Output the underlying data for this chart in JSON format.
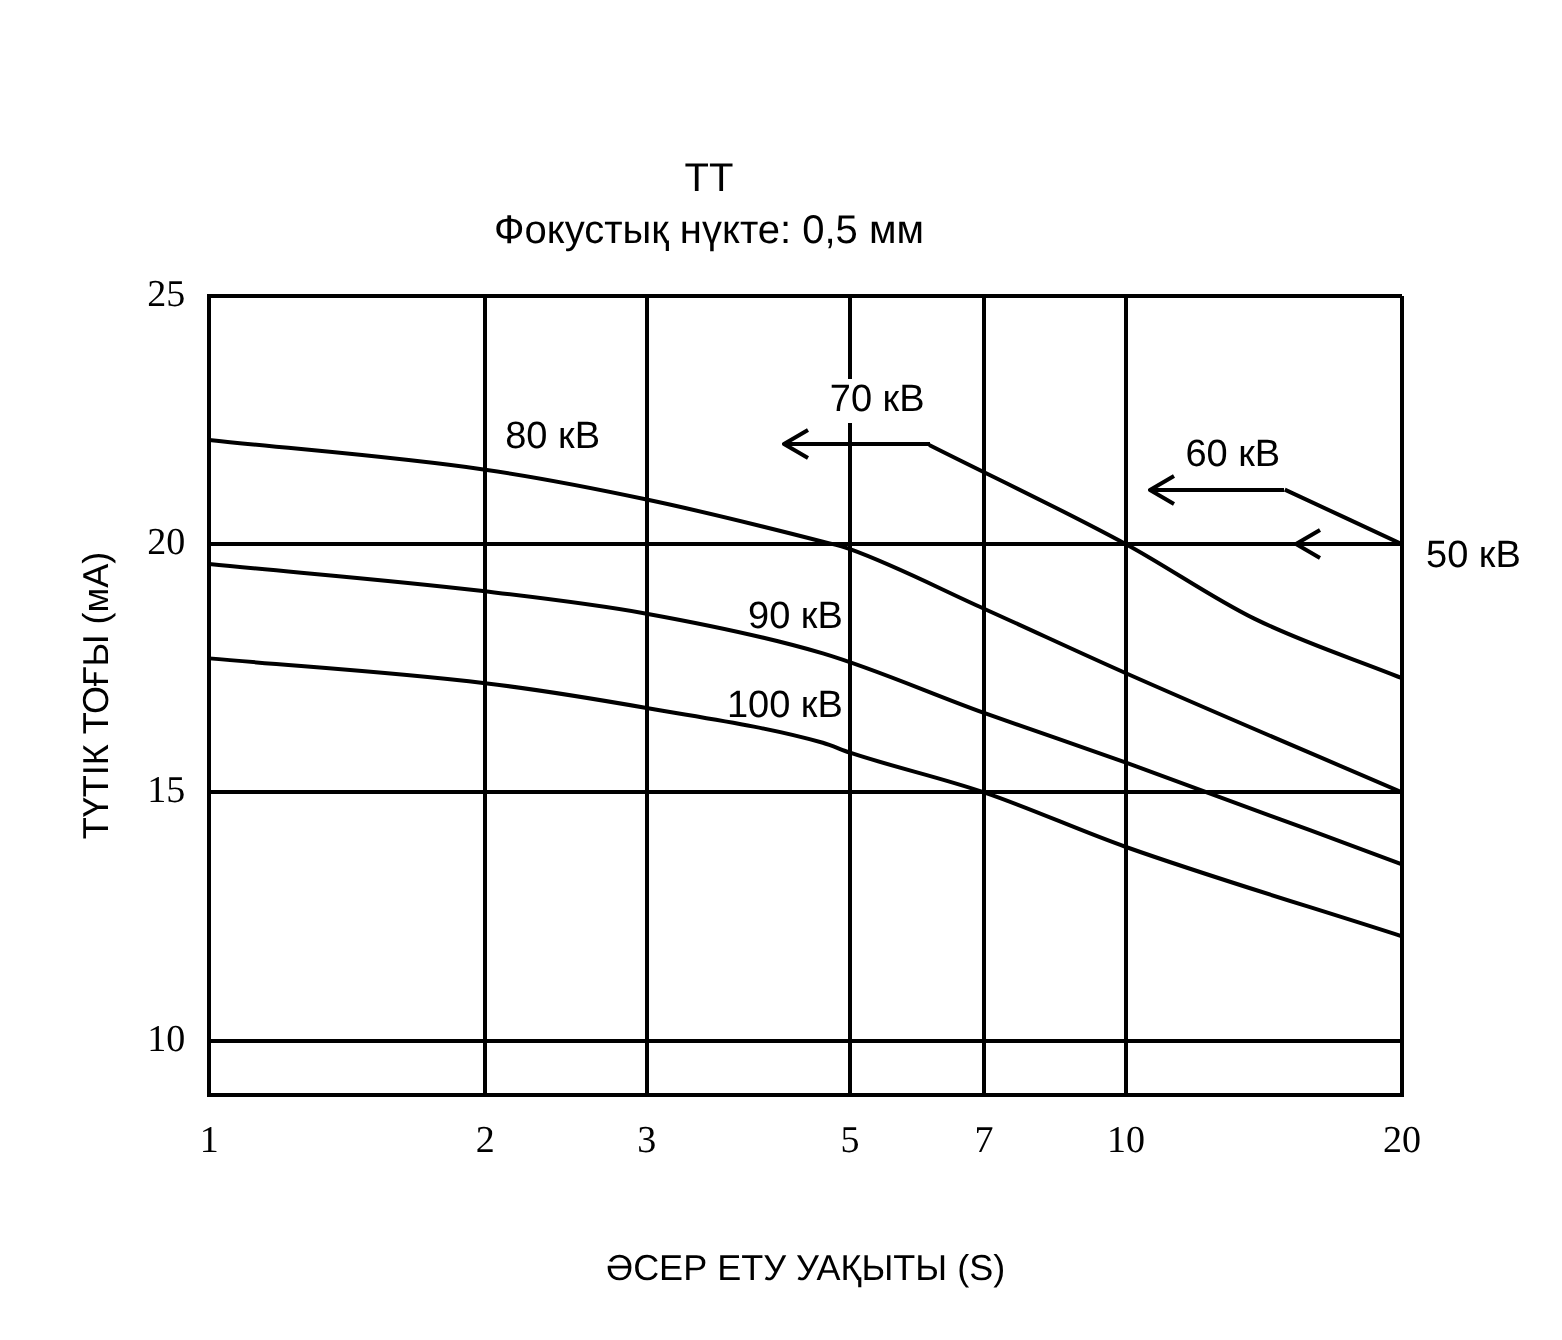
{
  "chart_data": {
    "type": "line",
    "title": "ТТ",
    "subtitle": "Фокустық нүкте: 0,5 мм",
    "xlabel": "ӘСЕР ЕТУ УАҚЫТЫ (S)",
    "ylabel": "ТҮТІК ТОҒЫ (мА)",
    "log": "x",
    "xlim": [
      1,
      20
    ],
    "xticks": [
      1,
      2,
      3,
      5,
      7,
      10,
      20
    ],
    "ylim": [
      8.9,
      25
    ],
    "yticks": [
      10,
      15,
      20,
      25
    ],
    "grid": true,
    "legend": false,
    "marker": "none",
    "line_style": "solid",
    "series": [
      {
        "name": "80 кВ",
        "color": "#000000",
        "x": [
          1,
          2,
          3,
          4.67,
          5,
          7,
          10,
          20
        ],
        "values": [
          22.1,
          21.5,
          20.9,
          20.05,
          19.9,
          18.7,
          17.4,
          15.0
        ]
      },
      {
        "name": "90 кВ",
        "color": "#000000",
        "x": [
          1,
          2,
          3,
          4.67,
          7,
          10,
          20
        ],
        "values": [
          19.6,
          19.05,
          18.6,
          17.8,
          16.6,
          15.6,
          13.55
        ]
      },
      {
        "name": "100 кВ",
        "color": "#000000",
        "x": [
          1,
          2,
          3,
          4.67,
          5,
          7,
          10,
          20
        ],
        "values": [
          17.7,
          17.2,
          16.7,
          16.0,
          15.8,
          15.0,
          13.9,
          12.1
        ]
      },
      {
        "name": "70 кВ",
        "color": "#000000",
        "x": [
          6.1,
          10,
          13.8,
          20
        ],
        "values": [
          22.0,
          20.0,
          18.5,
          17.3
        ]
      },
      {
        "name": "60 кВ",
        "color": "#000000",
        "x": [
          14.9,
          20
        ],
        "values": [
          21.1,
          20.0
        ]
      }
    ],
    "annotations": [
      {
        "text": "50 кВ",
        "x": 20,
        "y": 20
      }
    ]
  }
}
